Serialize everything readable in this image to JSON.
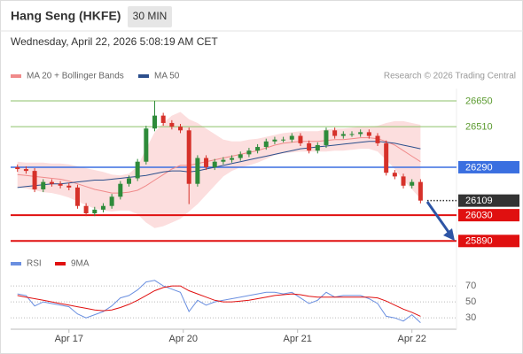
{
  "header": {
    "title": "Hang Seng (HKFE)",
    "interval": "30 MIN",
    "timestamp": "Wednesday, April 22, 2026 5:08:19 AM CET",
    "credit": "Research © 2026 Trading Central"
  },
  "chart_data": [
    {
      "type": "candlestick",
      "up_color": "#2e8b3a",
      "down_color": "#d6312a",
      "xlim": [
        -0.51,
        3.39
      ],
      "xticks": [
        {
          "value": 0,
          "label": "Apr 17"
        },
        {
          "value": 1,
          "label": "Apr 20"
        },
        {
          "value": 2,
          "label": "Apr 21"
        },
        {
          "value": 3,
          "label": "Apr 22"
        }
      ],
      "ylim": [
        25853,
        26717
      ],
      "x": [
        -0.45,
        -0.375,
        -0.3,
        -0.225,
        -0.15,
        -0.075,
        0,
        0.075,
        0.15,
        0.225,
        0.3,
        0.375,
        0.45,
        0.525,
        0.6,
        0.675,
        0.75,
        0.825,
        0.9,
        0.975,
        1.05,
        1.125,
        1.2,
        1.275,
        1.35,
        1.425,
        1.5,
        1.575,
        1.65,
        1.725,
        1.8,
        1.875,
        1.95,
        2.025,
        2.1,
        2.175,
        2.25,
        2.325,
        2.4,
        2.475,
        2.55,
        2.625,
        2.7,
        2.775,
        2.85,
        2.925,
        3.0,
        3.075
      ],
      "open": [
        26290,
        26280,
        26270,
        26170,
        26210,
        26200,
        26190,
        26180,
        26080,
        26040,
        26060,
        26080,
        26130,
        26200,
        26230,
        26320,
        26500,
        26570,
        26530,
        26510,
        26490,
        26200,
        26340,
        26290,
        26320,
        26330,
        26340,
        26360,
        26380,
        26400,
        26430,
        26440,
        26440,
        26460,
        26420,
        26380,
        26410,
        26490,
        26460,
        26470,
        26470,
        26480,
        26460,
        26420,
        26260,
        26240,
        26190,
        26210
      ],
      "high": [
        26305,
        26295,
        26285,
        26225,
        26225,
        26215,
        26205,
        26195,
        26095,
        26075,
        26095,
        26145,
        26215,
        26245,
        26335,
        26515,
        26650,
        26585,
        26545,
        26525,
        26505,
        26355,
        26355,
        26335,
        26345,
        26355,
        26375,
        26395,
        26415,
        26445,
        26455,
        26455,
        26475,
        26475,
        26435,
        26425,
        26505,
        26505,
        26485,
        26485,
        26495,
        26495,
        26475,
        26435,
        26275,
        26255,
        26225,
        26225
      ],
      "low": [
        26265,
        26255,
        26155,
        26155,
        26185,
        26175,
        26165,
        26065,
        26025,
        26025,
        26045,
        26065,
        26115,
        26185,
        26215,
        26305,
        26485,
        26515,
        26495,
        26475,
        26090,
        26185,
        26275,
        26275,
        26305,
        26315,
        26325,
        26345,
        26365,
        26385,
        26415,
        26425,
        26425,
        26405,
        26365,
        26365,
        26395,
        26445,
        26445,
        26455,
        26455,
        26445,
        26405,
        26245,
        26225,
        26175,
        26175,
        26094
      ],
      "close": [
        26280,
        26270,
        26170,
        26210,
        26200,
        26190,
        26180,
        26080,
        26040,
        26060,
        26080,
        26130,
        26200,
        26230,
        26320,
        26500,
        26570,
        26530,
        26510,
        26490,
        26200,
        26340,
        26290,
        26320,
        26330,
        26340,
        26360,
        26380,
        26400,
        26430,
        26440,
        26440,
        26460,
        26420,
        26380,
        26410,
        26490,
        26460,
        26470,
        26470,
        26480,
        26460,
        26420,
        26260,
        26240,
        26190,
        26210,
        26109
      ],
      "series": [
        {
          "name": "MA 20 + Bollinger Bands",
          "color": "#f08a8a",
          "band_color": "#fcdede",
          "values": [
            26250,
            26245,
            26240,
            26235,
            26230,
            26225,
            26215,
            26200,
            26185,
            26170,
            26160,
            26150,
            26150,
            26155,
            26165,
            26190,
            26220,
            26250,
            26280,
            26300,
            26300,
            26310,
            26320,
            26330,
            26340,
            26350,
            26360,
            26370,
            26380,
            26395,
            26410,
            26420,
            26425,
            26430,
            26430,
            26430,
            26435,
            26440,
            26440,
            26445,
            26450,
            26450,
            26445,
            26430,
            26410,
            26380,
            26350,
            26320
          ],
          "upper": [
            26320,
            26315,
            26315,
            26315,
            26310,
            26310,
            26305,
            26295,
            26285,
            26275,
            26265,
            26250,
            26245,
            26255,
            26295,
            26390,
            26480,
            26530,
            26570,
            26590,
            26550,
            26530,
            26500,
            26470,
            26440,
            26430,
            26430,
            26440,
            26445,
            26455,
            26465,
            26475,
            26480,
            26485,
            26485,
            26485,
            26495,
            26500,
            26500,
            26505,
            26510,
            26510,
            26515,
            26530,
            26540,
            26540,
            26530,
            26520
          ],
          "lower": [
            26180,
            26175,
            26165,
            26155,
            26150,
            26140,
            26125,
            26105,
            26085,
            26065,
            26055,
            26050,
            26055,
            26055,
            26035,
            25990,
            25960,
            25970,
            25990,
            26010,
            26050,
            26090,
            26140,
            26190,
            26240,
            26270,
            26290,
            26300,
            26315,
            26335,
            26355,
            26365,
            26370,
            26375,
            26375,
            26375,
            26375,
            26380,
            26380,
            26385,
            26390,
            26390,
            26375,
            26330,
            26280,
            26220,
            26170,
            26120
          ]
        },
        {
          "name": "MA 50",
          "color": "#2c4f8c",
          "values": [
            26180,
            26185,
            26190,
            26195,
            26200,
            26200,
            26205,
            26210,
            26215,
            26220,
            26220,
            26225,
            26230,
            26235,
            26240,
            26245,
            26255,
            26265,
            26270,
            26270,
            26265,
            26270,
            26280,
            26290,
            26300,
            26310,
            26320,
            26330,
            26340,
            26350,
            26360,
            26370,
            26380,
            26390,
            26395,
            26400,
            26405,
            26410,
            26415,
            26420,
            26425,
            26430,
            26430,
            26425,
            26420,
            26410,
            26400,
            26390
          ]
        }
      ],
      "levels": [
        {
          "value": 26650,
          "color": "#8cc26a",
          "line": "solid",
          "boxed": false
        },
        {
          "value": 26510,
          "color": "#8cc26a",
          "line": "solid",
          "boxed": false
        },
        {
          "value": 26290,
          "color": "#3a6fe0",
          "line": "solid",
          "boxed": true
        },
        {
          "value": 26109,
          "color": "#333333",
          "line": "dotted",
          "boxed": true
        },
        {
          "value": 26030,
          "color": "#e01010",
          "line": "solid",
          "boxed": true
        },
        {
          "value": 25890,
          "color": "#e01010",
          "line": "solid",
          "boxed": true
        }
      ]
    },
    {
      "type": "line",
      "ylim": [
        18,
        79
      ],
      "yticks": [
        30,
        50,
        70
      ],
      "grid": true,
      "series": [
        {
          "name": "RSI",
          "color": "#6a8fe0",
          "values": [
            60,
            58,
            45,
            50,
            48,
            46,
            44,
            35,
            30,
            34,
            38,
            45,
            55,
            58,
            65,
            75,
            77,
            70,
            66,
            62,
            38,
            52,
            46,
            50,
            52,
            54,
            56,
            58,
            60,
            62,
            62,
            60,
            62,
            55,
            48,
            52,
            62,
            56,
            58,
            58,
            58,
            54,
            48,
            32,
            30,
            26,
            34,
            24
          ]
        },
        {
          "name": "9MA",
          "color": "#e01010",
          "values": [
            58,
            56,
            54,
            52,
            50,
            48,
            46,
            44,
            42,
            40,
            39,
            40,
            43,
            47,
            52,
            58,
            64,
            68,
            70,
            70,
            64,
            60,
            56,
            52,
            50,
            50,
            51,
            52,
            54,
            56,
            58,
            59,
            60,
            59,
            57,
            56,
            56,
            56,
            56,
            56,
            56,
            56,
            55,
            51,
            46,
            41,
            37,
            32
          ]
        }
      ]
    }
  ]
}
